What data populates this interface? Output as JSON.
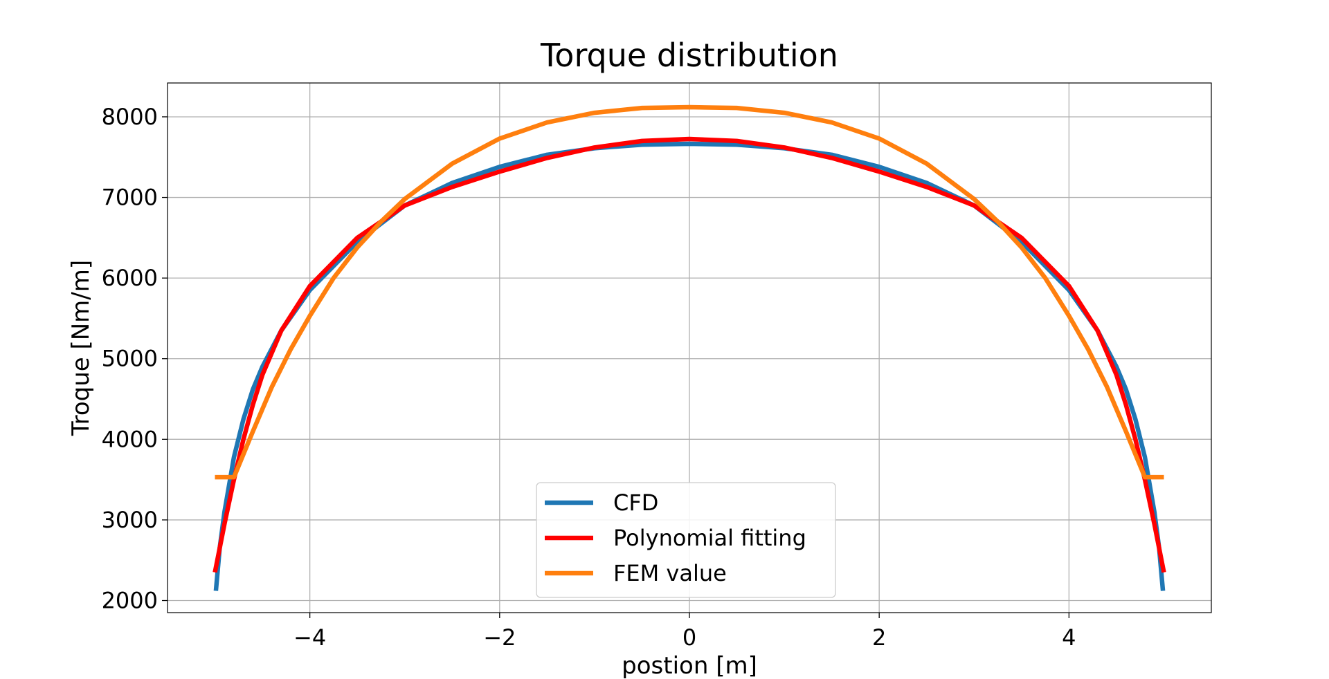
{
  "chart_data": {
    "type": "line",
    "title": "Torque distribution",
    "xlabel": "postion [m]",
    "ylabel": "Troque [Nm/m]",
    "xlim": [
      -5.5,
      5.5
    ],
    "ylim": [
      1850,
      8420
    ],
    "xticks": [
      -4,
      -2,
      0,
      2,
      4
    ],
    "xtick_labels": [
      "−4",
      "−2",
      "0",
      "2",
      "4"
    ],
    "yticks": [
      2000,
      3000,
      4000,
      5000,
      6000,
      7000,
      8000
    ],
    "ytick_labels": [
      "2000",
      "3000",
      "4000",
      "5000",
      "6000",
      "7000",
      "8000"
    ],
    "grid": true,
    "legend": "lower-center",
    "series": [
      {
        "name": "CFD",
        "color": "#1f77b4",
        "x": [
          -4.99,
          -4.95,
          -4.9,
          -4.8,
          -4.7,
          -4.6,
          -4.5,
          -4.3,
          -4.0,
          -3.5,
          -3.0,
          -2.5,
          -2.0,
          -1.5,
          -1.0,
          -0.5,
          0,
          0.5,
          1.0,
          1.5,
          2.0,
          2.5,
          3.0,
          3.5,
          4.0,
          4.3,
          4.5,
          4.6,
          4.7,
          4.8,
          4.9,
          4.95,
          4.99
        ],
        "y": [
          2120,
          2650,
          3100,
          3780,
          4250,
          4620,
          4900,
          5350,
          5850,
          6450,
          6900,
          7180,
          7380,
          7530,
          7610,
          7655,
          7665,
          7655,
          7610,
          7530,
          7380,
          7180,
          6900,
          6450,
          5850,
          5350,
          4900,
          4620,
          4250,
          3780,
          3100,
          2650,
          2120
        ]
      },
      {
        "name": "Polynomial fitting",
        "color": "#ff0000",
        "x": [
          -5.0,
          -4.9,
          -4.8,
          -4.7,
          -4.6,
          -4.5,
          -4.3,
          -4.0,
          -3.5,
          -3.0,
          -2.5,
          -2.0,
          -1.5,
          -1.0,
          -0.5,
          0,
          0.5,
          1.0,
          1.5,
          2.0,
          2.5,
          3.0,
          3.5,
          4.0,
          4.3,
          4.5,
          4.6,
          4.7,
          4.8,
          4.9,
          5.0
        ],
        "y": [
          2350,
          2950,
          3500,
          4000,
          4430,
          4800,
          5350,
          5900,
          6500,
          6900,
          7130,
          7320,
          7490,
          7620,
          7700,
          7725,
          7700,
          7620,
          7490,
          7320,
          7130,
          6900,
          6500,
          5900,
          5350,
          4800,
          4430,
          4000,
          3500,
          2950,
          2350
        ]
      },
      {
        "name": "FEM value",
        "color": "#ff7f0e",
        "x": [
          -5.0,
          -4.8,
          -4.6,
          -4.4,
          -4.2,
          -4.0,
          -3.75,
          -3.5,
          -3.25,
          -3.0,
          -2.5,
          -2.0,
          -1.5,
          -1.0,
          -0.5,
          0,
          0.5,
          1.0,
          1.5,
          2.0,
          2.5,
          3.0,
          3.25,
          3.5,
          3.75,
          4.0,
          4.2,
          4.4,
          4.6,
          4.8,
          5.0
        ],
        "y": [
          3530,
          3530,
          4100,
          4650,
          5120,
          5530,
          6000,
          6380,
          6700,
          6980,
          7420,
          7730,
          7930,
          8050,
          8110,
          8120,
          8110,
          8050,
          7930,
          7730,
          7420,
          6980,
          6700,
          6380,
          6000,
          5530,
          5120,
          4650,
          4100,
          3530,
          3530
        ]
      }
    ]
  }
}
